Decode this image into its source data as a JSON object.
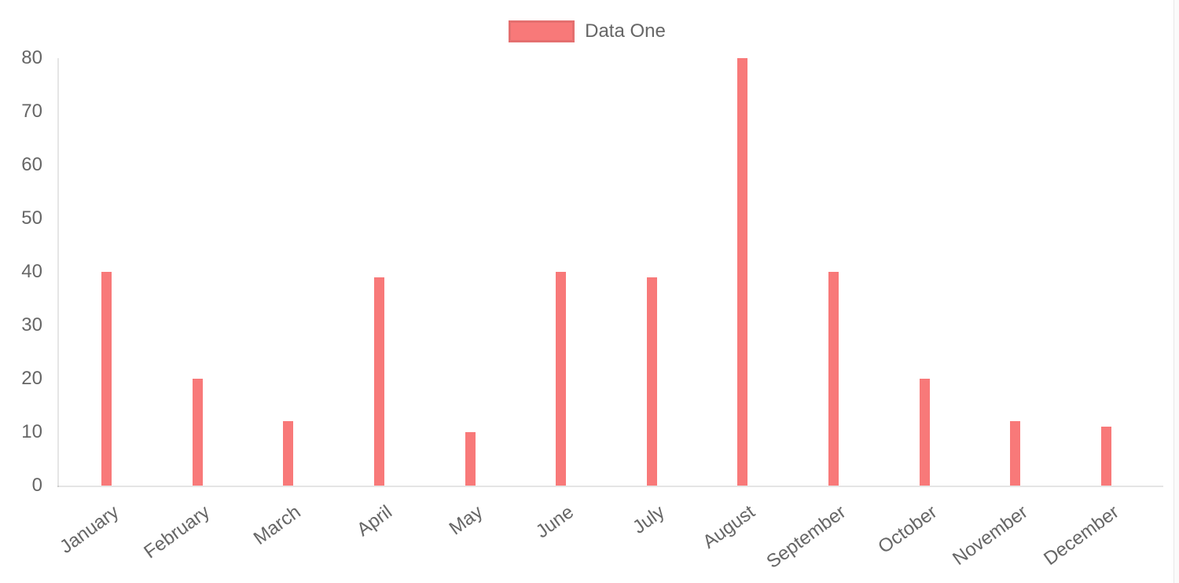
{
  "chart_data": {
    "type": "bar",
    "title": "",
    "categories": [
      "January",
      "February",
      "March",
      "April",
      "May",
      "June",
      "July",
      "August",
      "September",
      "October",
      "November",
      "December"
    ],
    "series": [
      {
        "name": "Data One",
        "color": "#f87979",
        "values": [
          40,
          20,
          12,
          39,
          10,
          40,
          39,
          80,
          40,
          20,
          12,
          11
        ]
      }
    ],
    "xlabel": "",
    "ylabel": "",
    "ylim": [
      0,
      80
    ],
    "y_ticks": [
      0,
      10,
      20,
      30,
      40,
      50,
      60,
      70,
      80
    ],
    "grid": "off",
    "legend_position": "top-center",
    "x_tick_rotation_deg": -36,
    "colors": {
      "bar": "#f87979",
      "tick_text": "#666666",
      "axis_line": "rgba(0,0,0,0.1)",
      "legend_box_border": "rgba(0,0,0,0.08)"
    }
  }
}
